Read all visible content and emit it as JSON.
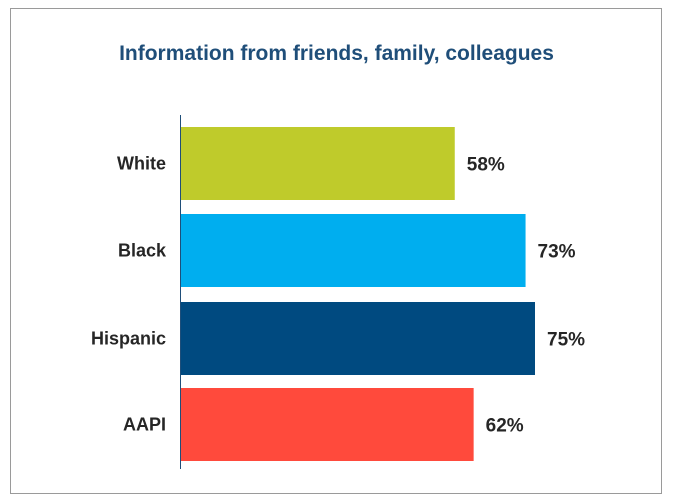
{
  "chart_data": {
    "type": "bar",
    "orientation": "horizontal",
    "title": "Information from friends, family, colleagues",
    "categories": [
      "White",
      "Black",
      "Hispanic",
      "AAPI"
    ],
    "values": [
      58,
      73,
      75,
      62
    ],
    "value_labels": [
      "58%",
      "73%",
      "75%",
      "62%"
    ],
    "colors": [
      "#bfcb2b",
      "#00aeef",
      "#004a80",
      "#ff4a3c"
    ],
    "xlim": [
      0,
      100
    ],
    "grid": false,
    "legend": "none"
  }
}
